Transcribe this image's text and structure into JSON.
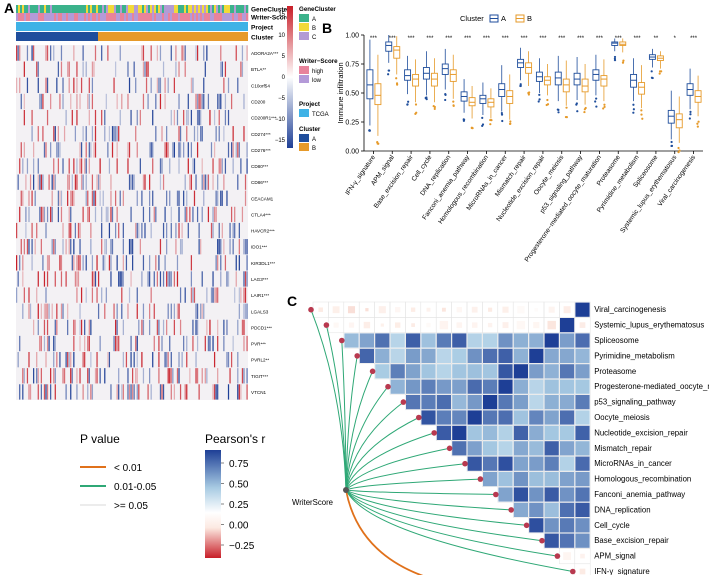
{
  "panel_labels": {
    "a": "A",
    "b": "B",
    "c": "C"
  },
  "colors": {
    "cluster_a": "#1f4e9c",
    "cluster_b": "#e69a2a",
    "project_tcga": "#3fb2e6",
    "writer_high": "#e8839b",
    "writer_low": "#b49ad8",
    "genecluster_a": "#3bb28b",
    "genecluster_b": "#f2d93a",
    "genecluster_c": "#b39bd4",
    "p_lt001": "#e0711b",
    "p_001_005": "#2fa876",
    "p_ge005": "#d9d9d9",
    "heat_red": "#c81e28",
    "heat_blue": "#1e3f96"
  },
  "heatmap": {
    "annotation_rows": [
      "GeneCluster",
      "Writer-Score",
      "Project",
      "Cluster"
    ],
    "genes": [
      "ADORA2A***",
      "BTLA**",
      "C10orf54",
      "CD200",
      "CD200R1***",
      "CD274***",
      "CD276***",
      "CD80***",
      "CD86***",
      "CEACAM1",
      "CTLA4***",
      "HAVCR2***",
      "IDO1***",
      "KIR3DL1***",
      "LAG3***",
      "LAIR1***",
      "LGALS3",
      "PDCD1***",
      "PVR***",
      "PVRL2**",
      "TIGIT***",
      "VTCN1"
    ],
    "scale_ticks": [
      "15",
      "10",
      "5",
      "0",
      "−5",
      "−10",
      "−15"
    ],
    "legend": {
      "genecluster_title": "GeneCluster",
      "genecluster_items": [
        "A",
        "B",
        "C"
      ],
      "writer_title": "Writer−Score",
      "writer_items": [
        "high",
        "low"
      ],
      "project_title": "Project",
      "project_items": [
        "TCGA"
      ],
      "cluster_title": "Cluster",
      "cluster_items": [
        "A",
        "B"
      ]
    }
  },
  "chart_data": [
    {
      "type": "box",
      "title": "",
      "legend_title": "Cluster",
      "legend_items": [
        "A",
        "B"
      ],
      "ylabel": "Immune infiltration",
      "ylim": [
        0.0,
        1.0
      ],
      "yticks": [
        "0.00",
        "0.25",
        "0.50",
        "0.75",
        "1.00"
      ],
      "categories": [
        "IFN-γ_signature",
        "APM_signal",
        "Base_excision_repair",
        "Cell_cycle",
        "DNA_replication",
        "Fanconi_anemia_pathway",
        "Homologous_recombination",
        "MicroRNAs_in_cancer",
        "Mismatch_repair",
        "Nucleotide_excision_repair",
        "Oocyte_meiosis",
        "p53_signaling_pathway",
        "Progesterone−mediated_oocyte_maturation",
        "Proteasome",
        "Pyrimidine_metabolism",
        "Spliceosome",
        "Systemic_lupus_erythematosus",
        "Viral_carcinogenesis"
      ],
      "significance": [
        "***",
        "***",
        "***",
        "***",
        "***",
        "***",
        "***",
        "***",
        "***",
        "***",
        "***",
        "***",
        "***",
        "***",
        "***",
        "**",
        "*",
        "***"
      ],
      "series": [
        {
          "name": "A",
          "q1": [
            0.45,
            0.86,
            0.61,
            0.62,
            0.66,
            0.43,
            0.41,
            0.47,
            0.72,
            0.6,
            0.57,
            0.57,
            0.61,
            0.91,
            0.55,
            0.79,
            0.24,
            0.48
          ],
          "median": [
            0.57,
            0.91,
            0.65,
            0.67,
            0.71,
            0.47,
            0.45,
            0.53,
            0.76,
            0.64,
            0.63,
            0.62,
            0.66,
            0.93,
            0.61,
            0.81,
            0.3,
            0.53
          ],
          "q3": [
            0.7,
            0.94,
            0.7,
            0.72,
            0.75,
            0.51,
            0.48,
            0.58,
            0.79,
            0.68,
            0.68,
            0.67,
            0.7,
            0.94,
            0.66,
            0.83,
            0.35,
            0.58
          ],
          "min": [
            0.22,
            0.76,
            0.49,
            0.48,
            0.53,
            0.33,
            0.31,
            0.34,
            0.61,
            0.5,
            0.43,
            0.44,
            0.48,
            0.86,
            0.43,
            0.72,
            0.1,
            0.36
          ],
          "max": [
            0.96,
            1.0,
            0.82,
            0.86,
            0.88,
            0.62,
            0.59,
            0.74,
            0.89,
            0.8,
            0.82,
            0.81,
            0.83,
            0.97,
            0.8,
            0.88,
            0.52,
            0.71
          ]
        },
        {
          "name": "B",
          "q1": [
            0.4,
            0.8,
            0.56,
            0.56,
            0.6,
            0.39,
            0.38,
            0.41,
            0.67,
            0.57,
            0.51,
            0.51,
            0.56,
            0.91,
            0.49,
            0.78,
            0.2,
            0.42
          ],
          "median": [
            0.48,
            0.87,
            0.62,
            0.62,
            0.66,
            0.42,
            0.42,
            0.47,
            0.72,
            0.61,
            0.57,
            0.56,
            0.62,
            0.92,
            0.55,
            0.8,
            0.27,
            0.47
          ],
          "q3": [
            0.58,
            0.9,
            0.66,
            0.67,
            0.7,
            0.46,
            0.45,
            0.52,
            0.76,
            0.64,
            0.62,
            0.62,
            0.65,
            0.94,
            0.59,
            0.82,
            0.32,
            0.52
          ],
          "min": [
            0.13,
            0.66,
            0.42,
            0.42,
            0.45,
            0.28,
            0.28,
            0.27,
            0.56,
            0.48,
            0.39,
            0.4,
            0.43,
            0.85,
            0.37,
            0.71,
            0.07,
            0.3
          ],
          "max": [
            0.83,
            0.99,
            0.79,
            0.8,
            0.83,
            0.56,
            0.54,
            0.66,
            0.86,
            0.75,
            0.78,
            0.75,
            0.79,
            0.97,
            0.74,
            0.86,
            0.47,
            0.65
          ]
        }
      ]
    },
    {
      "type": "heatmap",
      "title": "",
      "rows": [
        "Viral_carcinogenesis",
        "Systemic_lupus_erythematosus",
        "Spliceosome",
        "Pyrimidine_metabolism",
        "Proteasome",
        "Progesterone-mediated_oocyte_maturation",
        "p53_signaling_pathway",
        "Oocyte_meiosis",
        "Nucleotide_excision_repair",
        "Mismatch_repair",
        "MicroRNAs_in_cancer",
        "Homologous_recombination",
        "Fanconi_anemia_pathway",
        "DNA_replication",
        "Cell_cycle",
        "Base_excision_repair",
        "APM_signal",
        "IFN-γ_signature"
      ],
      "mantel_source": "WriterScore",
      "mantel_target_label": "WriterScore",
      "p_value_title": "P value",
      "p_value_items": [
        "< 0.01",
        "0.01-0.05",
        ">= 0.05"
      ],
      "color_title": "Pearson's r",
      "color_ticks": [
        "0.75",
        "0.50",
        "0.25",
        "0.00",
        "−0.25"
      ],
      "color_range": [
        -0.3,
        0.95
      ]
    }
  ]
}
